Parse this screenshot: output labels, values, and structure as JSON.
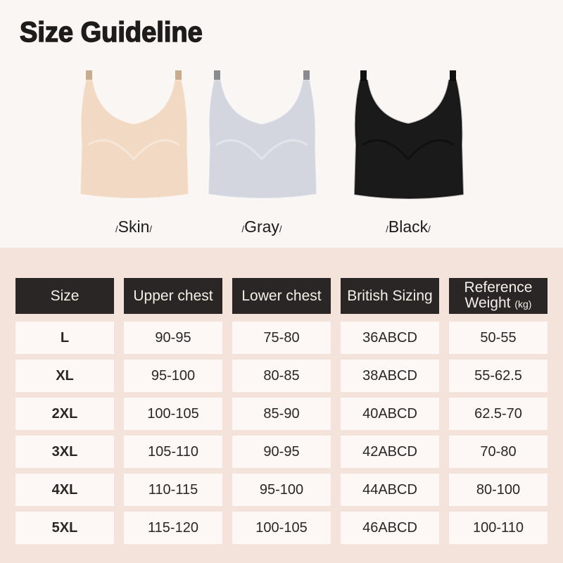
{
  "title": "Size Guideline",
  "colors": [
    {
      "label": "Skin",
      "swatch": "#f2d9c3"
    },
    {
      "label": "Gray",
      "swatch": "#d3d6de"
    },
    {
      "label": "Black",
      "swatch": "#1b1a1a"
    }
  ],
  "table": {
    "headers": [
      "Size",
      "Upper chest",
      "Lower chest",
      "British Sizing",
      "Reference Weight"
    ],
    "weight_unit": "(kg)",
    "rows": [
      [
        "L",
        "90-95",
        "75-80",
        "36ABCD",
        "50-55"
      ],
      [
        "XL",
        "95-100",
        "80-85",
        "38ABCD",
        "55-62.5"
      ],
      [
        "2XL",
        "100-105",
        "85-90",
        "40ABCD",
        "62.5-70"
      ],
      [
        "3XL",
        "105-110",
        "90-95",
        "42ABCD",
        "70-80"
      ],
      [
        "4XL",
        "110-115",
        "95-100",
        "44ABCD",
        "80-100"
      ],
      [
        "5XL",
        "115-120",
        "100-105",
        "46ABCD",
        "100-110"
      ]
    ]
  }
}
